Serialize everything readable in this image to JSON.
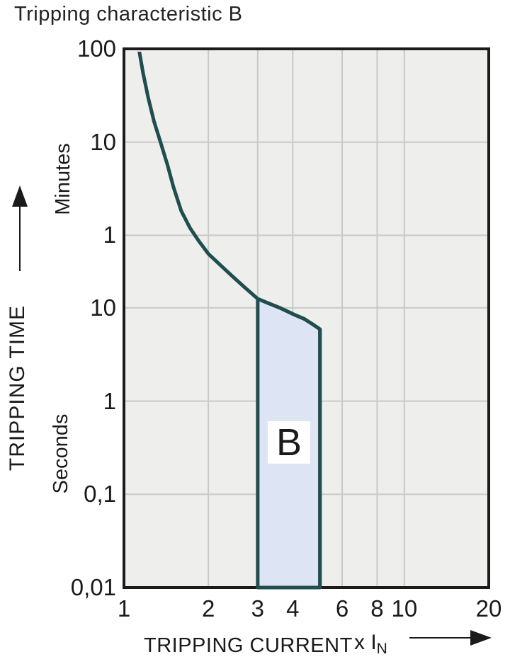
{
  "chart_data": {
    "type": "line",
    "title": "Tripping characteristic B",
    "x_axis": {
      "label": "TRIPPING CURRENT",
      "multiplier": "x I",
      "multiplier_sub": "N",
      "scale": "log",
      "range": [
        1,
        20
      ],
      "ticks": [
        {
          "v": 1,
          "label": "1"
        },
        {
          "v": 2,
          "label": "2"
        },
        {
          "v": 3,
          "label": "3"
        },
        {
          "v": 4,
          "label": "4"
        },
        {
          "v": 6,
          "label": "6"
        },
        {
          "v": 8,
          "label": "8"
        },
        {
          "v": 10,
          "label": "10"
        },
        {
          "v": 20,
          "label": "20"
        }
      ],
      "gridlines": [
        2,
        3,
        4,
        6,
        8,
        10
      ]
    },
    "y_axis": {
      "label": "TRIPPING TIME",
      "scale": "log",
      "unit_upper": "Minutes",
      "unit_lower": "Seconds",
      "range_seconds": [
        0.01,
        6000
      ],
      "ticks": [
        {
          "t": 6000,
          "label": "100"
        },
        {
          "t": 600,
          "label": "10"
        },
        {
          "t": 60,
          "label": "1"
        },
        {
          "t": 10,
          "label": "10"
        },
        {
          "t": 1,
          "label": "1"
        },
        {
          "t": 0.1,
          "label": "0,1"
        },
        {
          "t": 0.01,
          "label": "0,01"
        }
      ],
      "gridlines": [
        600,
        60,
        10,
        1,
        0.1
      ]
    },
    "series": [
      {
        "name": "tripping-curve",
        "points_v_x_In_t_seconds": [
          [
            1.13,
            6000
          ],
          [
            1.17,
            3300
          ],
          [
            1.22,
            1800
          ],
          [
            1.28,
            1000
          ],
          [
            1.35,
            600
          ],
          [
            1.43,
            340
          ],
          [
            1.5,
            200
          ],
          [
            1.6,
            110
          ],
          [
            1.72,
            72
          ],
          [
            1.85,
            52
          ],
          [
            2.0,
            38
          ],
          [
            2.2,
            29
          ],
          [
            2.45,
            21.5
          ],
          [
            2.7,
            16.5
          ],
          [
            3.0,
            12.5
          ],
          [
            3.3,
            11.1
          ],
          [
            3.6,
            10.0
          ],
          [
            4.0,
            8.6
          ],
          [
            4.4,
            7.6
          ],
          [
            4.7,
            6.7
          ],
          [
            5.0,
            5.9
          ],
          [
            5.0,
            0.01
          ]
        ]
      }
    ],
    "band": {
      "label": "B",
      "x_range": [
        3,
        5
      ],
      "top_points": [
        [
          3.0,
          12.5
        ],
        [
          3.3,
          11.1
        ],
        [
          3.6,
          10.0
        ],
        [
          4.0,
          8.6
        ],
        [
          4.4,
          7.6
        ],
        [
          4.7,
          6.7
        ],
        [
          5.0,
          5.9
        ]
      ],
      "bottom_seconds": 0.01
    },
    "layout_hints": {
      "grid": "on",
      "legend": "none"
    },
    "colors": {
      "curve": "#1e4f4c",
      "band_fill": "#dde4f4",
      "plot_bg": "#eeeeec",
      "gridline": "#c9c9c9",
      "border": "#1b1b1b",
      "text": "#1a1a1a"
    }
  }
}
